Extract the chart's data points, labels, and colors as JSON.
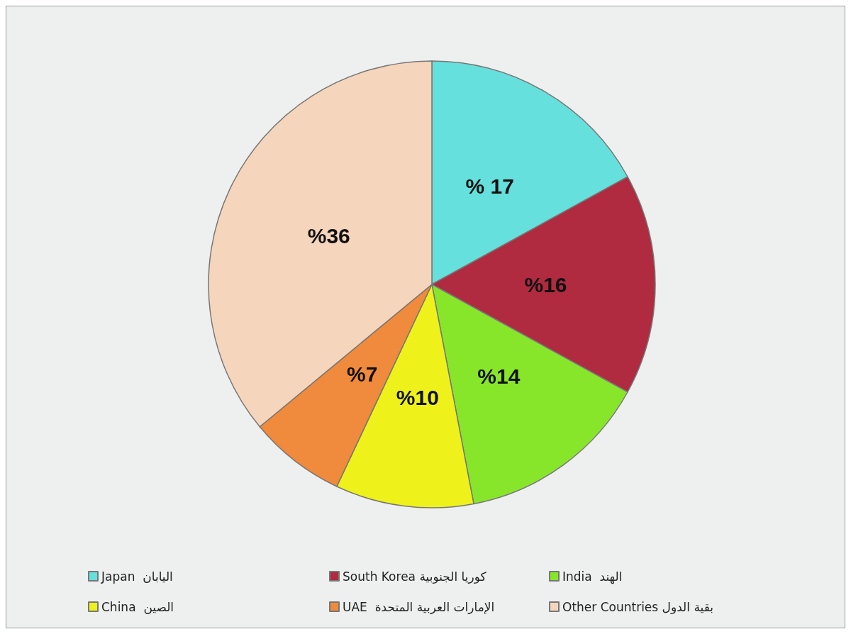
{
  "chart_data": {
    "type": "pie",
    "categories": [
      "Japan  اليابان",
      "South Korea كوريا الجنوبية",
      "India  الهند",
      "China  الصين",
      "UAE  الإمارات العربية المتحدة",
      "Other Countries بقية الدول"
    ],
    "values": [
      17,
      16,
      14,
      10,
      7,
      36
    ],
    "value_labels": [
      "% 17",
      "%16",
      "%14",
      "%10",
      "%7",
      "%36"
    ],
    "colors": [
      "#66e0dc",
      "#b02a40",
      "#88e62a",
      "#eef21a",
      "#f08a3c",
      "#f5d5bc"
    ],
    "legend": "bottom"
  }
}
